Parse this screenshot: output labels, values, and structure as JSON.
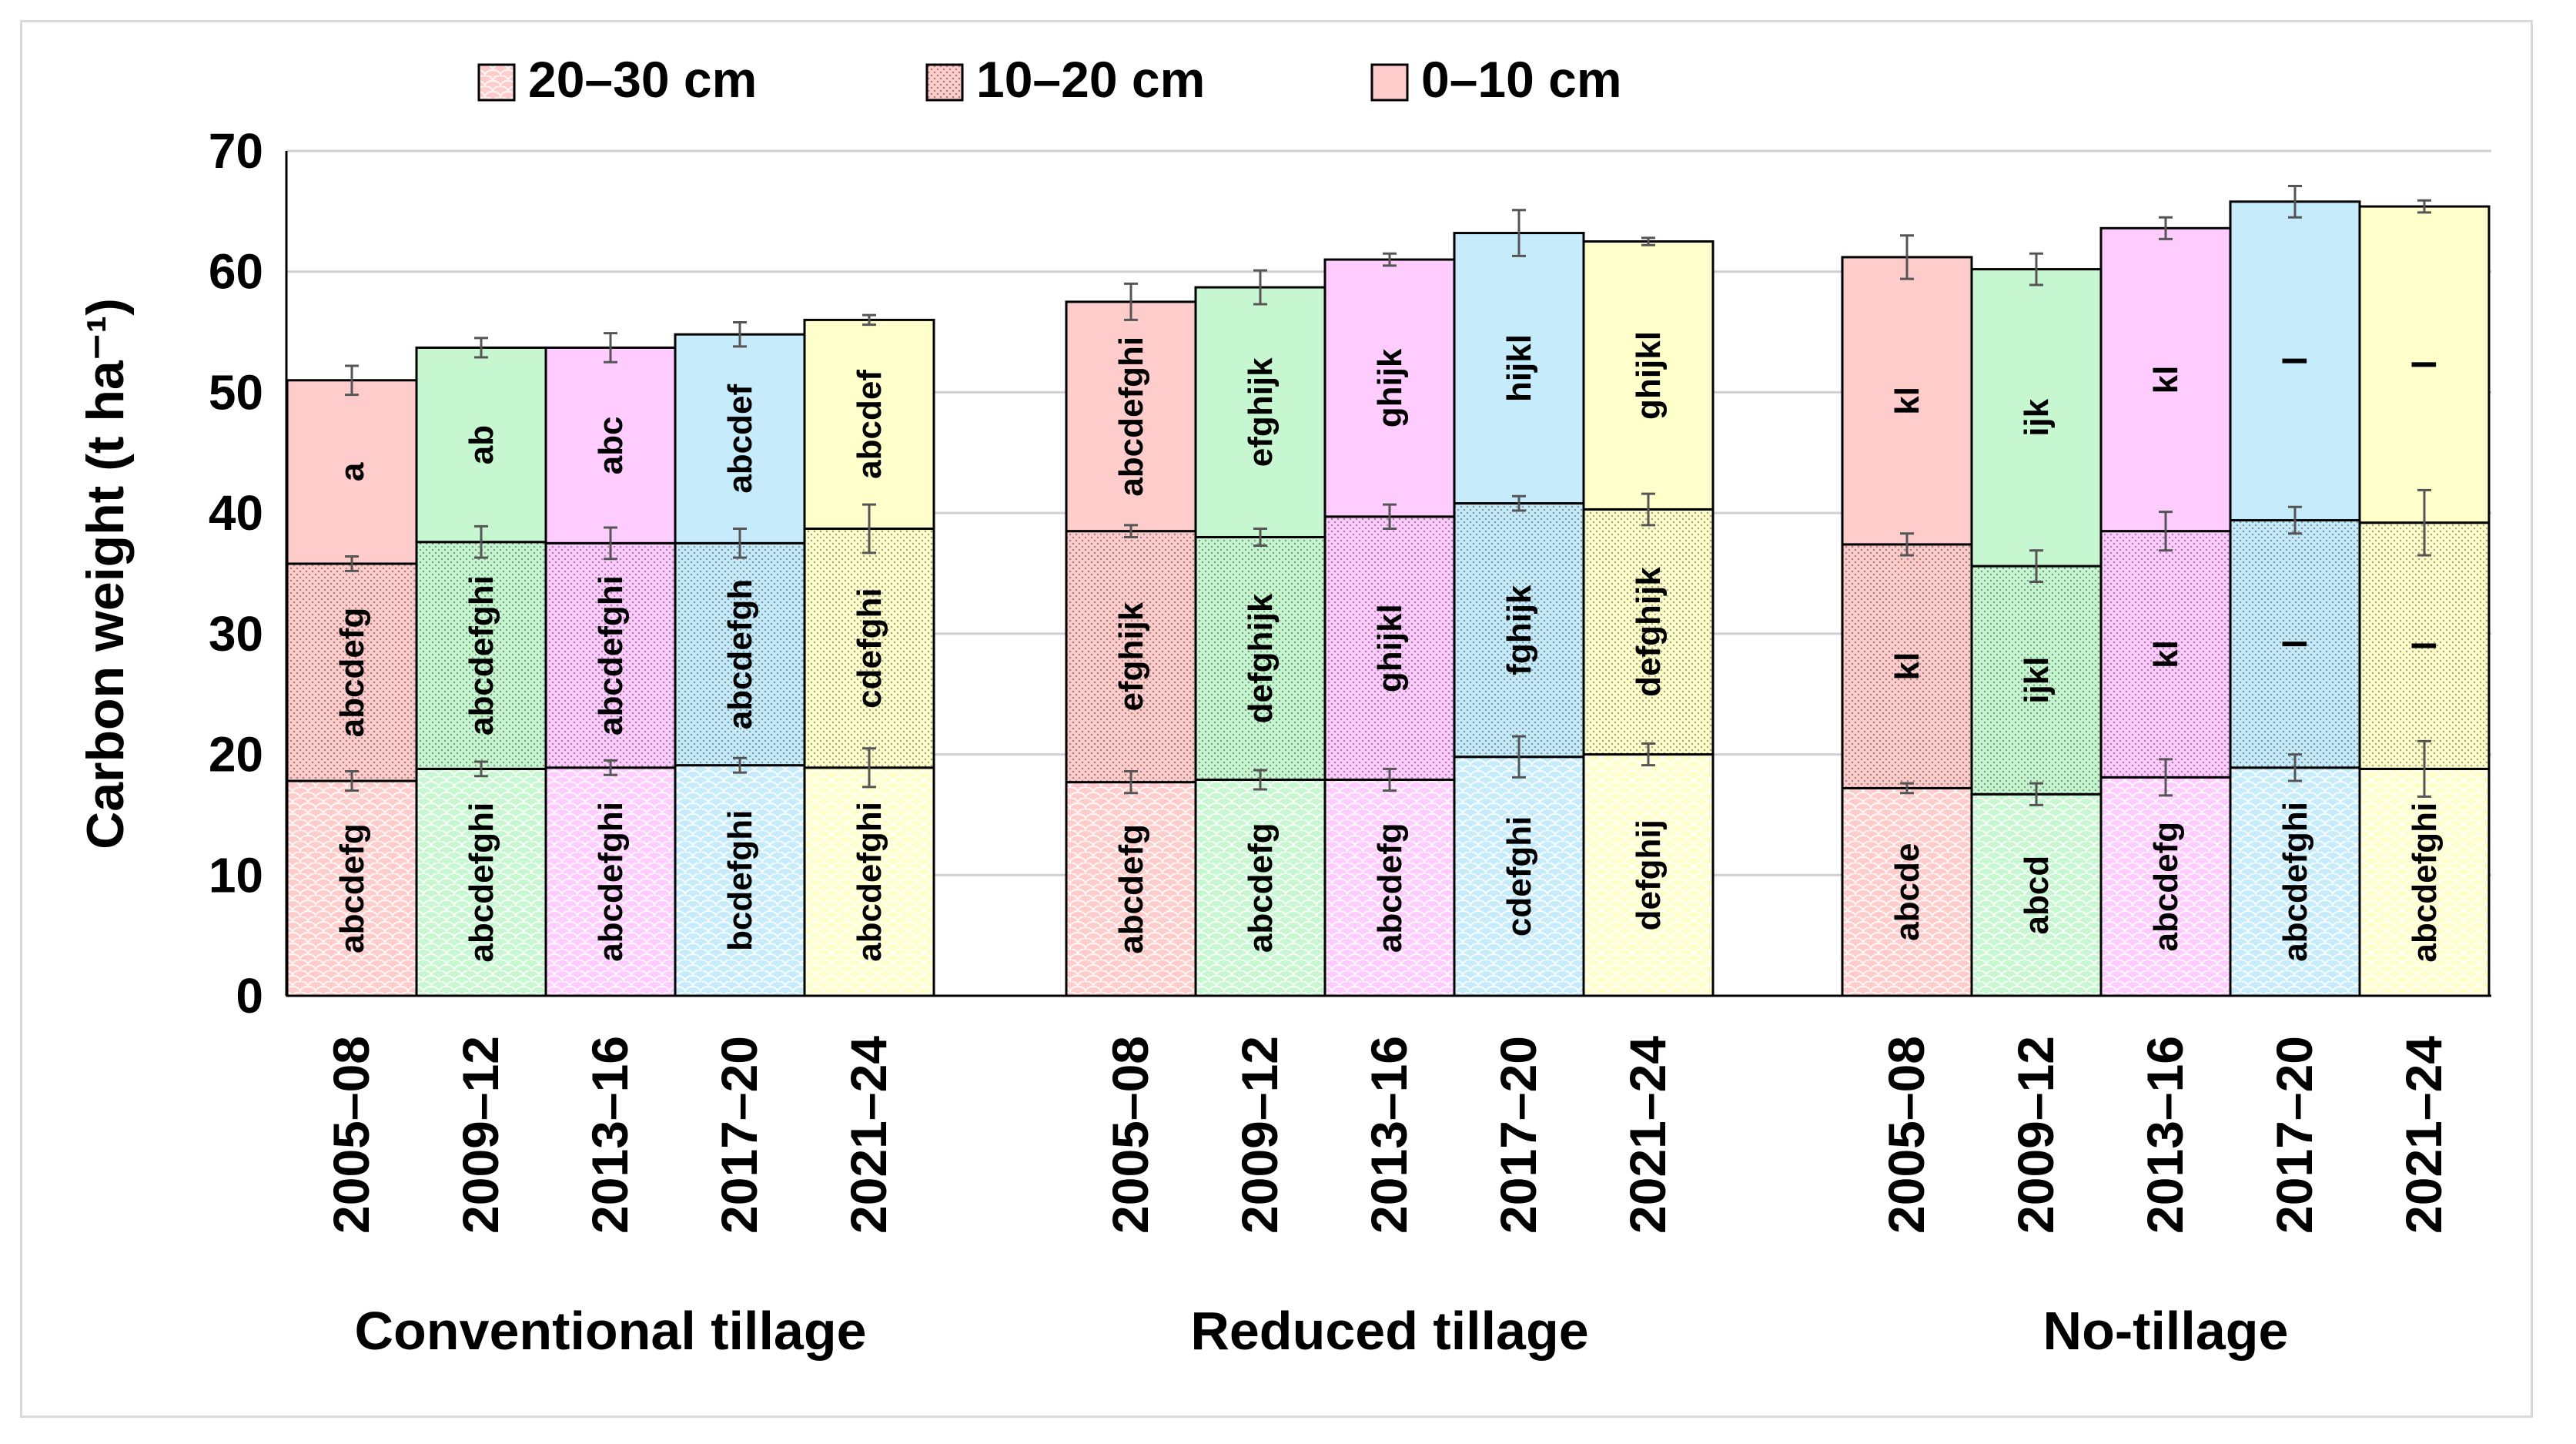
{
  "chart_data": {
    "type": "bar",
    "stacked": true,
    "ylabel": "Carbon weight  (t ha⁻¹)",
    "ylim": [
      0,
      70
    ],
    "yticks": [
      0,
      10,
      20,
      30,
      40,
      50,
      60,
      70
    ],
    "grid": true,
    "legend_position": "top",
    "legend": [
      {
        "name": "20–30 cm",
        "pattern": "scales"
      },
      {
        "name": "10–20 cm",
        "pattern": "dots"
      },
      {
        "name": "0–10 cm",
        "pattern": "solid"
      }
    ],
    "period_colors": {
      "2005–08": "#ffcccc",
      "2009–12": "#c6f7d0",
      "2013–16": "#ffccff",
      "2017–20": "#c6ecfb",
      "2021–24": "#ffffcc"
    },
    "groups": [
      {
        "name": "Conventional tillage",
        "bars": [
          {
            "period": "2005–08",
            "deep": 17.8,
            "mid": 35.8,
            "top": 51.0,
            "err": [
              0.8,
              0.6,
              1.2
            ],
            "labels": [
              "abcdefg",
              "abcdefg",
              "a"
            ]
          },
          {
            "period": "2009–12",
            "deep": 18.8,
            "mid": 37.6,
            "top": 53.7,
            "err": [
              0.6,
              1.3,
              0.8
            ],
            "labels": [
              "abcdefghi",
              "abcdefghi",
              "ab"
            ]
          },
          {
            "period": "2013–16",
            "deep": 18.9,
            "mid": 37.5,
            "top": 53.7,
            "err": [
              0.6,
              1.3,
              1.2
            ],
            "labels": [
              "abcdefghi",
              "abcdefghi",
              "abc"
            ]
          },
          {
            "period": "2017–20",
            "deep": 19.1,
            "mid": 37.5,
            "top": 54.8,
            "err": [
              0.6,
              1.2,
              1.0
            ],
            "labels": [
              "bcdefghi",
              "abcdefgh",
              "abcdef"
            ]
          },
          {
            "period": "2021–24",
            "deep": 18.9,
            "mid": 38.7,
            "top": 56.0,
            "err": [
              1.6,
              2.0,
              0.4
            ],
            "labels": [
              "abcdefghi",
              "cdefghi",
              "abcdef"
            ]
          }
        ]
      },
      {
        "name": "Reduced tillage",
        "bars": [
          {
            "period": "2005–08",
            "deep": 17.7,
            "mid": 38.5,
            "top": 57.5,
            "err": [
              0.9,
              0.5,
              1.5
            ],
            "labels": [
              "abcdefg",
              "efghijk",
              "abcdefghi"
            ]
          },
          {
            "period": "2009–12",
            "deep": 17.9,
            "mid": 38.0,
            "top": 58.7,
            "err": [
              0.8,
              0.7,
              1.4
            ],
            "labels": [
              "abcdefg",
              "defghijk",
              "efghijk"
            ]
          },
          {
            "period": "2013–16",
            "deep": 17.9,
            "mid": 39.7,
            "top": 61.0,
            "err": [
              0.9,
              1.0,
              0.5
            ],
            "labels": [
              "abcdefg",
              "ghijkl",
              "ghijk"
            ]
          },
          {
            "period": "2017–20",
            "deep": 19.8,
            "mid": 40.8,
            "top": 63.2,
            "err": [
              1.7,
              0.6,
              1.9
            ],
            "labels": [
              "cdefghi",
              "fghijk",
              "hijkl"
            ]
          },
          {
            "period": "2021–24",
            "deep": 20.0,
            "mid": 40.3,
            "top": 62.5,
            "err": [
              0.9,
              1.3,
              0.3
            ],
            "labels": [
              "defghij",
              "defghijk",
              "ghijkl"
            ]
          }
        ]
      },
      {
        "name": "No-tillage",
        "bars": [
          {
            "period": "2005–08",
            "deep": 17.2,
            "mid": 37.4,
            "top": 61.2,
            "err": [
              0.4,
              0.9,
              1.8
            ],
            "labels": [
              "abcde",
              "kl",
              "kl"
            ]
          },
          {
            "period": "2009–12",
            "deep": 16.7,
            "mid": 35.6,
            "top": 60.2,
            "err": [
              0.9,
              1.3,
              1.3
            ],
            "labels": [
              "abcd",
              "ijkl",
              "ijk"
            ]
          },
          {
            "period": "2013–16",
            "deep": 18.1,
            "mid": 38.5,
            "top": 63.6,
            "err": [
              1.5,
              1.6,
              0.9
            ],
            "labels": [
              "abcdefg",
              "kl",
              "kl"
            ]
          },
          {
            "period": "2017–20",
            "deep": 18.9,
            "mid": 39.4,
            "top": 65.8,
            "err": [
              1.1,
              1.1,
              1.3
            ],
            "labels": [
              "abcdefghi",
              "l",
              "l"
            ]
          },
          {
            "period": "2021–24",
            "deep": 18.8,
            "mid": 39.2,
            "top": 65.4,
            "err": [
              2.3,
              2.7,
              0.5
            ],
            "labels": [
              "abcdefghi",
              "l",
              "l"
            ]
          }
        ]
      }
    ]
  }
}
